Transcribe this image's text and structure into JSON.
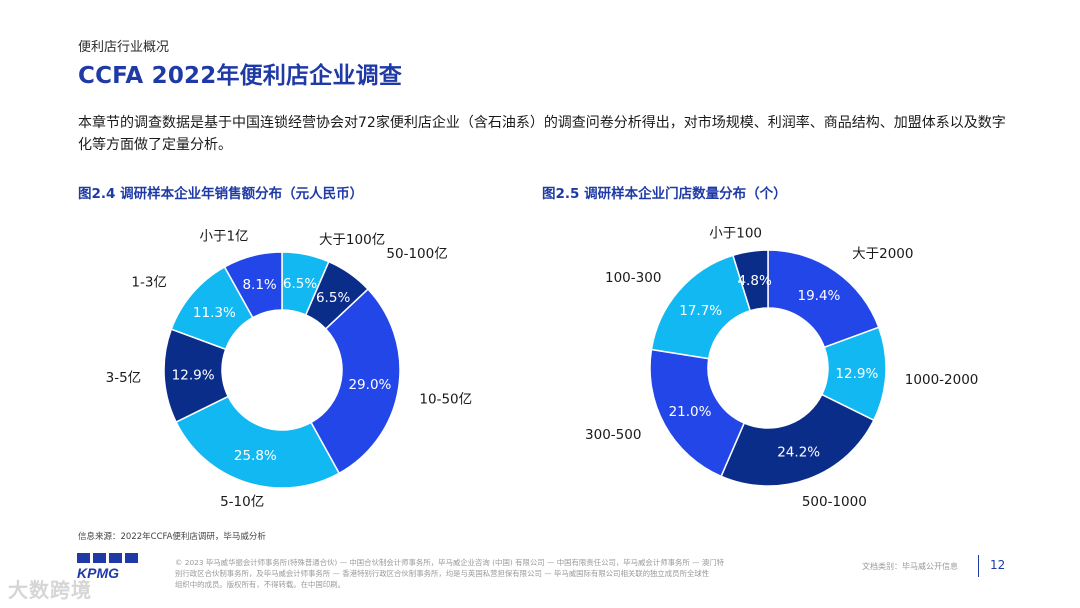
{
  "header": {
    "section": "便利店行业概况",
    "title": "CCFA 2022年便利店企业调查"
  },
  "intro": "本章节的调查数据是基于中国连锁经营协会对72家便利店企业（含石油系）的调查问卷分析得出，对市场规模、利润率、商品结构、加盟体系以及数字化等方面做了定量分析。",
  "colors": {
    "dark_navy": "#0b2d8a",
    "royal_blue": "#2346e8",
    "light_blue": "#12b8f2",
    "title_blue": "#1f3aa6"
  },
  "chart_data": [
    {
      "type": "pie",
      "donut": true,
      "title": "图2.4 调研样本企业年销售额分布（元人民币）",
      "categories": [
        "大于100亿",
        "50-100亿",
        "10-50亿",
        "5-10亿",
        "3-5亿",
        "1-3亿",
        "小于1亿"
      ],
      "values": [
        6.5,
        6.5,
        29.0,
        25.8,
        12.9,
        11.3,
        8.1
      ],
      "value_labels": [
        "6.5%",
        "6.5%",
        "29.0%",
        "25.8%",
        "12.9%",
        "11.3%",
        "8.1%"
      ],
      "colors": [
        "#12b8f2",
        "#0b2d8a",
        "#2346e8",
        "#12b8f2",
        "#0b2d8a",
        "#12b8f2",
        "#2346e8"
      ]
    },
    {
      "type": "pie",
      "donut": true,
      "title": "图2.5 调研样本企业门店数量分布（个）",
      "categories": [
        "大于2000",
        "1000-2000",
        "500-1000",
        "300-500",
        "100-300",
        "小于100"
      ],
      "values": [
        19.4,
        12.9,
        24.2,
        21.0,
        17.7,
        4.8
      ],
      "value_labels": [
        "19.4%",
        "12.9%",
        "24.2%",
        "21.0%",
        "17.7%",
        "4.8%"
      ],
      "colors": [
        "#2346e8",
        "#12b8f2",
        "#0b2d8a",
        "#2346e8",
        "#12b8f2",
        "#0b2d8a"
      ]
    }
  ],
  "source": "信息来源：2022年CCFA便利店调研，毕马威分析",
  "footer": {
    "legal_line1": "© 2023 毕马威华振会计师事务所(特殊普通合伙) — 中国合伙制会计师事务所，毕马威企业咨询 (中国) 有限公司 — 中国有限责任公司，毕马威会计师事务所 — 澳门特",
    "legal_line2": "别行政区合伙制事务所，及毕马威会计师事务所 — 香港特别行政区合伙制事务所，均是与英国私营担保有限公司 — 毕马威国际有限公司相关联的独立成员所全球性",
    "legal_line3": "组织中的成员。版权所有，不得转载。在中国印刷。",
    "classification": "文档类别：毕马威公开信息",
    "page": "12",
    "logo": "KPMG",
    "watermark": "大数跨境"
  }
}
